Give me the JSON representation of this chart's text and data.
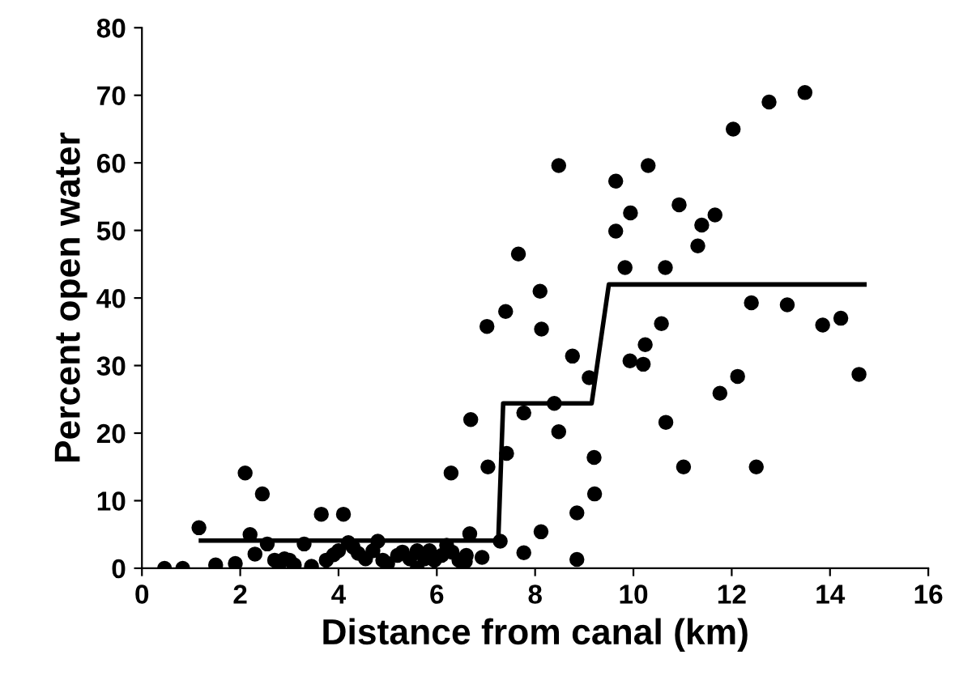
{
  "chart_data": {
    "type": "scatter",
    "xlabel": "Distance from canal (km)",
    "ylabel": "Percent open water",
    "xlim": [
      0,
      16
    ],
    "ylim": [
      0,
      80
    ],
    "xticks": [
      0,
      2,
      4,
      6,
      8,
      10,
      12,
      14,
      16
    ],
    "yticks": [
      0,
      10,
      20,
      30,
      40,
      50,
      60,
      70,
      80
    ],
    "grid": false,
    "legend": false,
    "marker": "circle",
    "series": [
      {
        "color": "#000000",
        "x": [
          0.46,
          0.83,
          1.16,
          1.5,
          1.9,
          2.1,
          2.2,
          2.3,
          2.45,
          2.55,
          2.7,
          2.8,
          2.9,
          3.0,
          3.1,
          3.3,
          3.45,
          3.65,
          3.75,
          3.9,
          4.0,
          4.1,
          4.2,
          4.3,
          4.4,
          4.55,
          4.7,
          4.8,
          4.9,
          5.0,
          5.2,
          5.3,
          5.45,
          5.6,
          5.6,
          5.75,
          5.85,
          5.95,
          6.1,
          6.2,
          6.29,
          6.31,
          6.45,
          6.58,
          6.6,
          6.67,
          6.69,
          6.92,
          7.02,
          7.04,
          7.29,
          7.4,
          7.42,
          7.66,
          7.77,
          7.77,
          8.1,
          8.12,
          8.13,
          8.39,
          8.48,
          8.48,
          8.76,
          8.85,
          8.85,
          9.1,
          9.2,
          9.21,
          9.64,
          9.64,
          9.83,
          9.93,
          9.94,
          10.2,
          10.24,
          10.3,
          10.57,
          10.65,
          10.66,
          10.93,
          11.02,
          11.31,
          11.39,
          11.66,
          11.76,
          12.03,
          12.12,
          12.4,
          12.5,
          12.76,
          13.13,
          13.49,
          13.85,
          14.22,
          14.59
        ],
        "values": [
          0,
          0,
          6,
          0.5,
          0.7,
          14.1,
          5,
          2.1,
          11,
          3.6,
          1.2,
          0.7,
          1.4,
          1.2,
          0.5,
          3.6,
          0.3,
          8,
          1.2,
          2,
          2.6,
          8,
          3.8,
          3.1,
          2.2,
          1.4,
          2.6,
          4,
          1.2,
          0.7,
          1.9,
          2.4,
          1.4,
          2.6,
          0,
          1.4,
          2.6,
          1.2,
          1.9,
          3.4,
          14.1,
          2.4,
          1.2,
          1,
          1.9,
          5.1,
          22,
          1.6,
          35.8,
          15,
          4,
          38,
          17,
          46.5,
          23,
          2.3,
          41,
          5.4,
          35.4,
          24.4,
          20.2,
          59.6,
          31.4,
          8.2,
          1.3,
          28.2,
          16.4,
          11,
          57.3,
          49.9,
          44.5,
          30.7,
          52.6,
          30.2,
          33.1,
          59.6,
          36.2,
          44.5,
          21.6,
          53.8,
          15,
          47.7,
          50.8,
          52.3,
          25.9,
          65,
          28.4,
          39.3,
          15,
          69,
          39,
          70.4,
          36,
          37,
          28.7
        ]
      },
      {
        "type": "line",
        "color": "#000000",
        "marker": "none",
        "line_style": "solid",
        "x": [
          1.2,
          7.25,
          7.35,
          9.15,
          9.5,
          14.7
        ],
        "values": [
          4.1,
          4.1,
          24.4,
          24.4,
          42,
          42
        ]
      }
    ]
  }
}
